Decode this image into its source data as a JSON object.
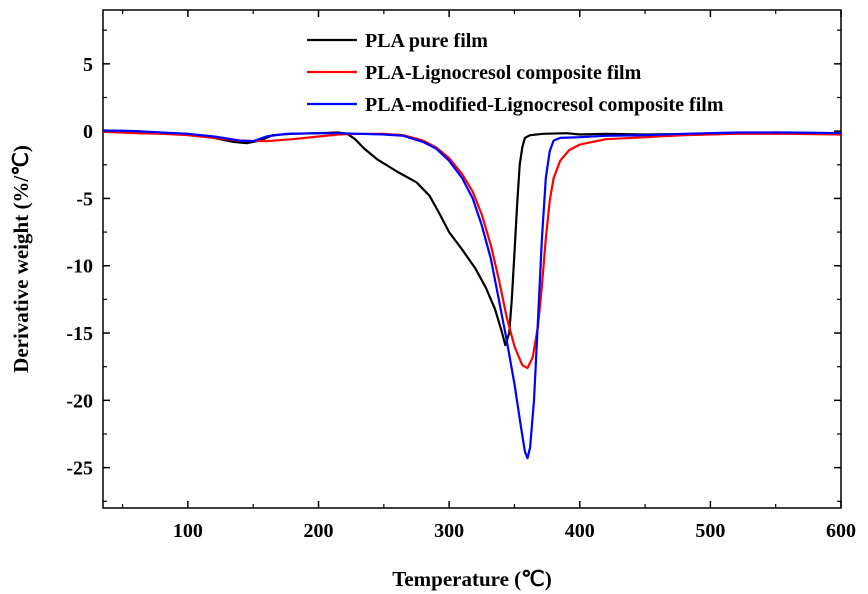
{
  "chart_data": {
    "type": "line",
    "xlabel": "Temperature (℃)",
    "ylabel": "Derivative weight (%/℃)",
    "xlim": [
      35,
      600
    ],
    "ylim": [
      -28,
      9
    ],
    "x_ticks": [
      100,
      200,
      300,
      400,
      500,
      600
    ],
    "x_tick_labels": [
      "100",
      "200",
      "300",
      "400",
      "500",
      "600"
    ],
    "y_ticks": [
      5,
      0,
      -5,
      -10,
      -15,
      -20,
      -25
    ],
    "y_tick_labels": [
      "5",
      "0",
      "-5",
      "-10",
      "-15",
      "-20",
      "-25"
    ],
    "grid": false,
    "legend_position": "top-right",
    "series": [
      {
        "name": "PLA pure film",
        "color": "#000000",
        "points": [
          [
            35,
            0.05
          ],
          [
            60,
            0.0
          ],
          [
            80,
            -0.15
          ],
          [
            100,
            -0.2
          ],
          [
            120,
            -0.5
          ],
          [
            135,
            -0.8
          ],
          [
            145,
            -0.9
          ],
          [
            155,
            -0.7
          ],
          [
            165,
            -0.3
          ],
          [
            180,
            -0.2
          ],
          [
            200,
            -0.15
          ],
          [
            215,
            -0.1
          ],
          [
            222,
            -0.2
          ],
          [
            228,
            -0.6
          ],
          [
            235,
            -1.3
          ],
          [
            245,
            -2.1
          ],
          [
            260,
            -3.0
          ],
          [
            275,
            -3.8
          ],
          [
            285,
            -4.8
          ],
          [
            293,
            -6.2
          ],
          [
            300,
            -7.5
          ],
          [
            310,
            -8.8
          ],
          [
            320,
            -10.2
          ],
          [
            328,
            -11.6
          ],
          [
            335,
            -13.2
          ],
          [
            340,
            -14.8
          ],
          [
            343,
            -15.9
          ],
          [
            346,
            -15.0
          ],
          [
            348,
            -12.5
          ],
          [
            350,
            -9.0
          ],
          [
            352,
            -5.5
          ],
          [
            354,
            -2.5
          ],
          [
            356,
            -1.2
          ],
          [
            358,
            -0.5
          ],
          [
            362,
            -0.3
          ],
          [
            372,
            -0.2
          ],
          [
            390,
            -0.15
          ],
          [
            400,
            -0.25
          ],
          [
            420,
            -0.2
          ],
          [
            450,
            -0.25
          ],
          [
            500,
            -0.2
          ],
          [
            550,
            -0.1
          ],
          [
            600,
            -0.15
          ]
        ]
      },
      {
        "name": "PLA-Lignocresol composite film",
        "color": "#ff0000",
        "points": [
          [
            35,
            -0.05
          ],
          [
            60,
            -0.15
          ],
          [
            80,
            -0.2
          ],
          [
            100,
            -0.3
          ],
          [
            120,
            -0.5
          ],
          [
            140,
            -0.7
          ],
          [
            160,
            -0.75
          ],
          [
            180,
            -0.6
          ],
          [
            200,
            -0.4
          ],
          [
            215,
            -0.25
          ],
          [
            230,
            -0.2
          ],
          [
            250,
            -0.2
          ],
          [
            265,
            -0.3
          ],
          [
            280,
            -0.7
          ],
          [
            290,
            -1.2
          ],
          [
            300,
            -2.0
          ],
          [
            310,
            -3.2
          ],
          [
            318,
            -4.5
          ],
          [
            325,
            -6.2
          ],
          [
            332,
            -8.5
          ],
          [
            338,
            -11.0
          ],
          [
            344,
            -13.8
          ],
          [
            350,
            -16.0
          ],
          [
            356,
            -17.4
          ],
          [
            360,
            -17.6
          ],
          [
            364,
            -16.8
          ],
          [
            368,
            -14.5
          ],
          [
            371,
            -11.5
          ],
          [
            374,
            -8.0
          ],
          [
            377,
            -5.2
          ],
          [
            380,
            -3.5
          ],
          [
            385,
            -2.2
          ],
          [
            392,
            -1.4
          ],
          [
            400,
            -1.0
          ],
          [
            420,
            -0.6
          ],
          [
            450,
            -0.45
          ],
          [
            480,
            -0.3
          ],
          [
            520,
            -0.2
          ],
          [
            560,
            -0.2
          ],
          [
            600,
            -0.25
          ]
        ]
      },
      {
        "name": "PLA-modified-Lignocresol composite film",
        "color": "#0000ff",
        "points": [
          [
            35,
            0.05
          ],
          [
            60,
            0.0
          ],
          [
            80,
            -0.1
          ],
          [
            100,
            -0.2
          ],
          [
            120,
            -0.4
          ],
          [
            140,
            -0.7
          ],
          [
            150,
            -0.75
          ],
          [
            160,
            -0.4
          ],
          [
            175,
            -0.2
          ],
          [
            200,
            -0.15
          ],
          [
            215,
            -0.15
          ],
          [
            230,
            -0.2
          ],
          [
            250,
            -0.25
          ],
          [
            265,
            -0.35
          ],
          [
            280,
            -0.8
          ],
          [
            290,
            -1.3
          ],
          [
            300,
            -2.2
          ],
          [
            310,
            -3.5
          ],
          [
            318,
            -5.0
          ],
          [
            325,
            -7.0
          ],
          [
            332,
            -9.5
          ],
          [
            338,
            -12.5
          ],
          [
            344,
            -15.5
          ],
          [
            350,
            -18.8
          ],
          [
            355,
            -22.0
          ],
          [
            358,
            -23.8
          ],
          [
            360,
            -24.3
          ],
          [
            362,
            -23.5
          ],
          [
            365,
            -20.0
          ],
          [
            368,
            -14.0
          ],
          [
            371,
            -8.0
          ],
          [
            374,
            -3.5
          ],
          [
            377,
            -1.5
          ],
          [
            380,
            -0.7
          ],
          [
            385,
            -0.5
          ],
          [
            400,
            -0.45
          ],
          [
            420,
            -0.35
          ],
          [
            450,
            -0.3
          ],
          [
            480,
            -0.2
          ],
          [
            520,
            -0.1
          ],
          [
            560,
            -0.1
          ],
          [
            600,
            -0.15
          ]
        ]
      }
    ]
  }
}
